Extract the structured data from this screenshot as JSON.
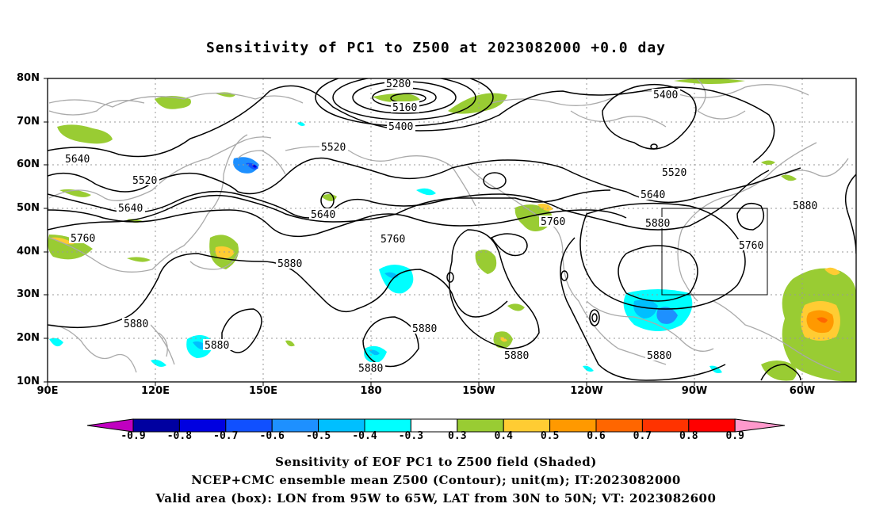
{
  "title": "Sensitivity of PC1 to Z500 at 2023082000 +0.0 day",
  "lat_labels": [
    "80N",
    "70N",
    "60N",
    "50N",
    "40N",
    "30N",
    "20N",
    "10N"
  ],
  "lon_labels": [
    "90E",
    "120E",
    "150E",
    "180",
    "150W",
    "120W",
    "90W",
    "60W"
  ],
  "contour_labels": [
    {
      "text": "5280"
    },
    {
      "text": "5160"
    },
    {
      "text": "5400"
    },
    {
      "text": "5400"
    },
    {
      "text": "5520"
    },
    {
      "text": "5520"
    },
    {
      "text": "5520"
    },
    {
      "text": "5640"
    },
    {
      "text": "5640"
    },
    {
      "text": "5640"
    },
    {
      "text": "5640"
    },
    {
      "text": "5760"
    },
    {
      "text": "5760"
    },
    {
      "text": "5760"
    },
    {
      "text": "5760"
    },
    {
      "text": "5880"
    },
    {
      "text": "5880"
    },
    {
      "text": "5880"
    },
    {
      "text": "5880"
    },
    {
      "text": "5880"
    },
    {
      "text": "5880"
    },
    {
      "text": "5880"
    },
    {
      "text": "5880"
    }
  ],
  "colorbar": {
    "labels": [
      "-0.9",
      "-0.8",
      "-0.7",
      "-0.6",
      "-0.5",
      "-0.4",
      "-0.3",
      "0.3",
      "0.4",
      "0.5",
      "0.6",
      "0.7",
      "0.8",
      "0.9"
    ],
    "colors": [
      "#c000c0",
      "#0000a0",
      "#0000e0",
      "#1050ff",
      "#1e90ff",
      "#00bfff",
      "#00ffff",
      "#ffffff",
      "#99cc33",
      "#ffcc33",
      "#ff9900",
      "#ff6600",
      "#ff3300",
      "#ff0000",
      "#ff99cc"
    ]
  },
  "captions": [
    "Sensitivity of EOF PC1 to Z500 field (Shaded)",
    "NCEP+CMC ensemble mean Z500 (Contour); unit(m); IT:2023082000",
    "Valid area (box): LON from 95W to 65W, LAT from 30N to 50N; VT: 2023082600"
  ]
}
